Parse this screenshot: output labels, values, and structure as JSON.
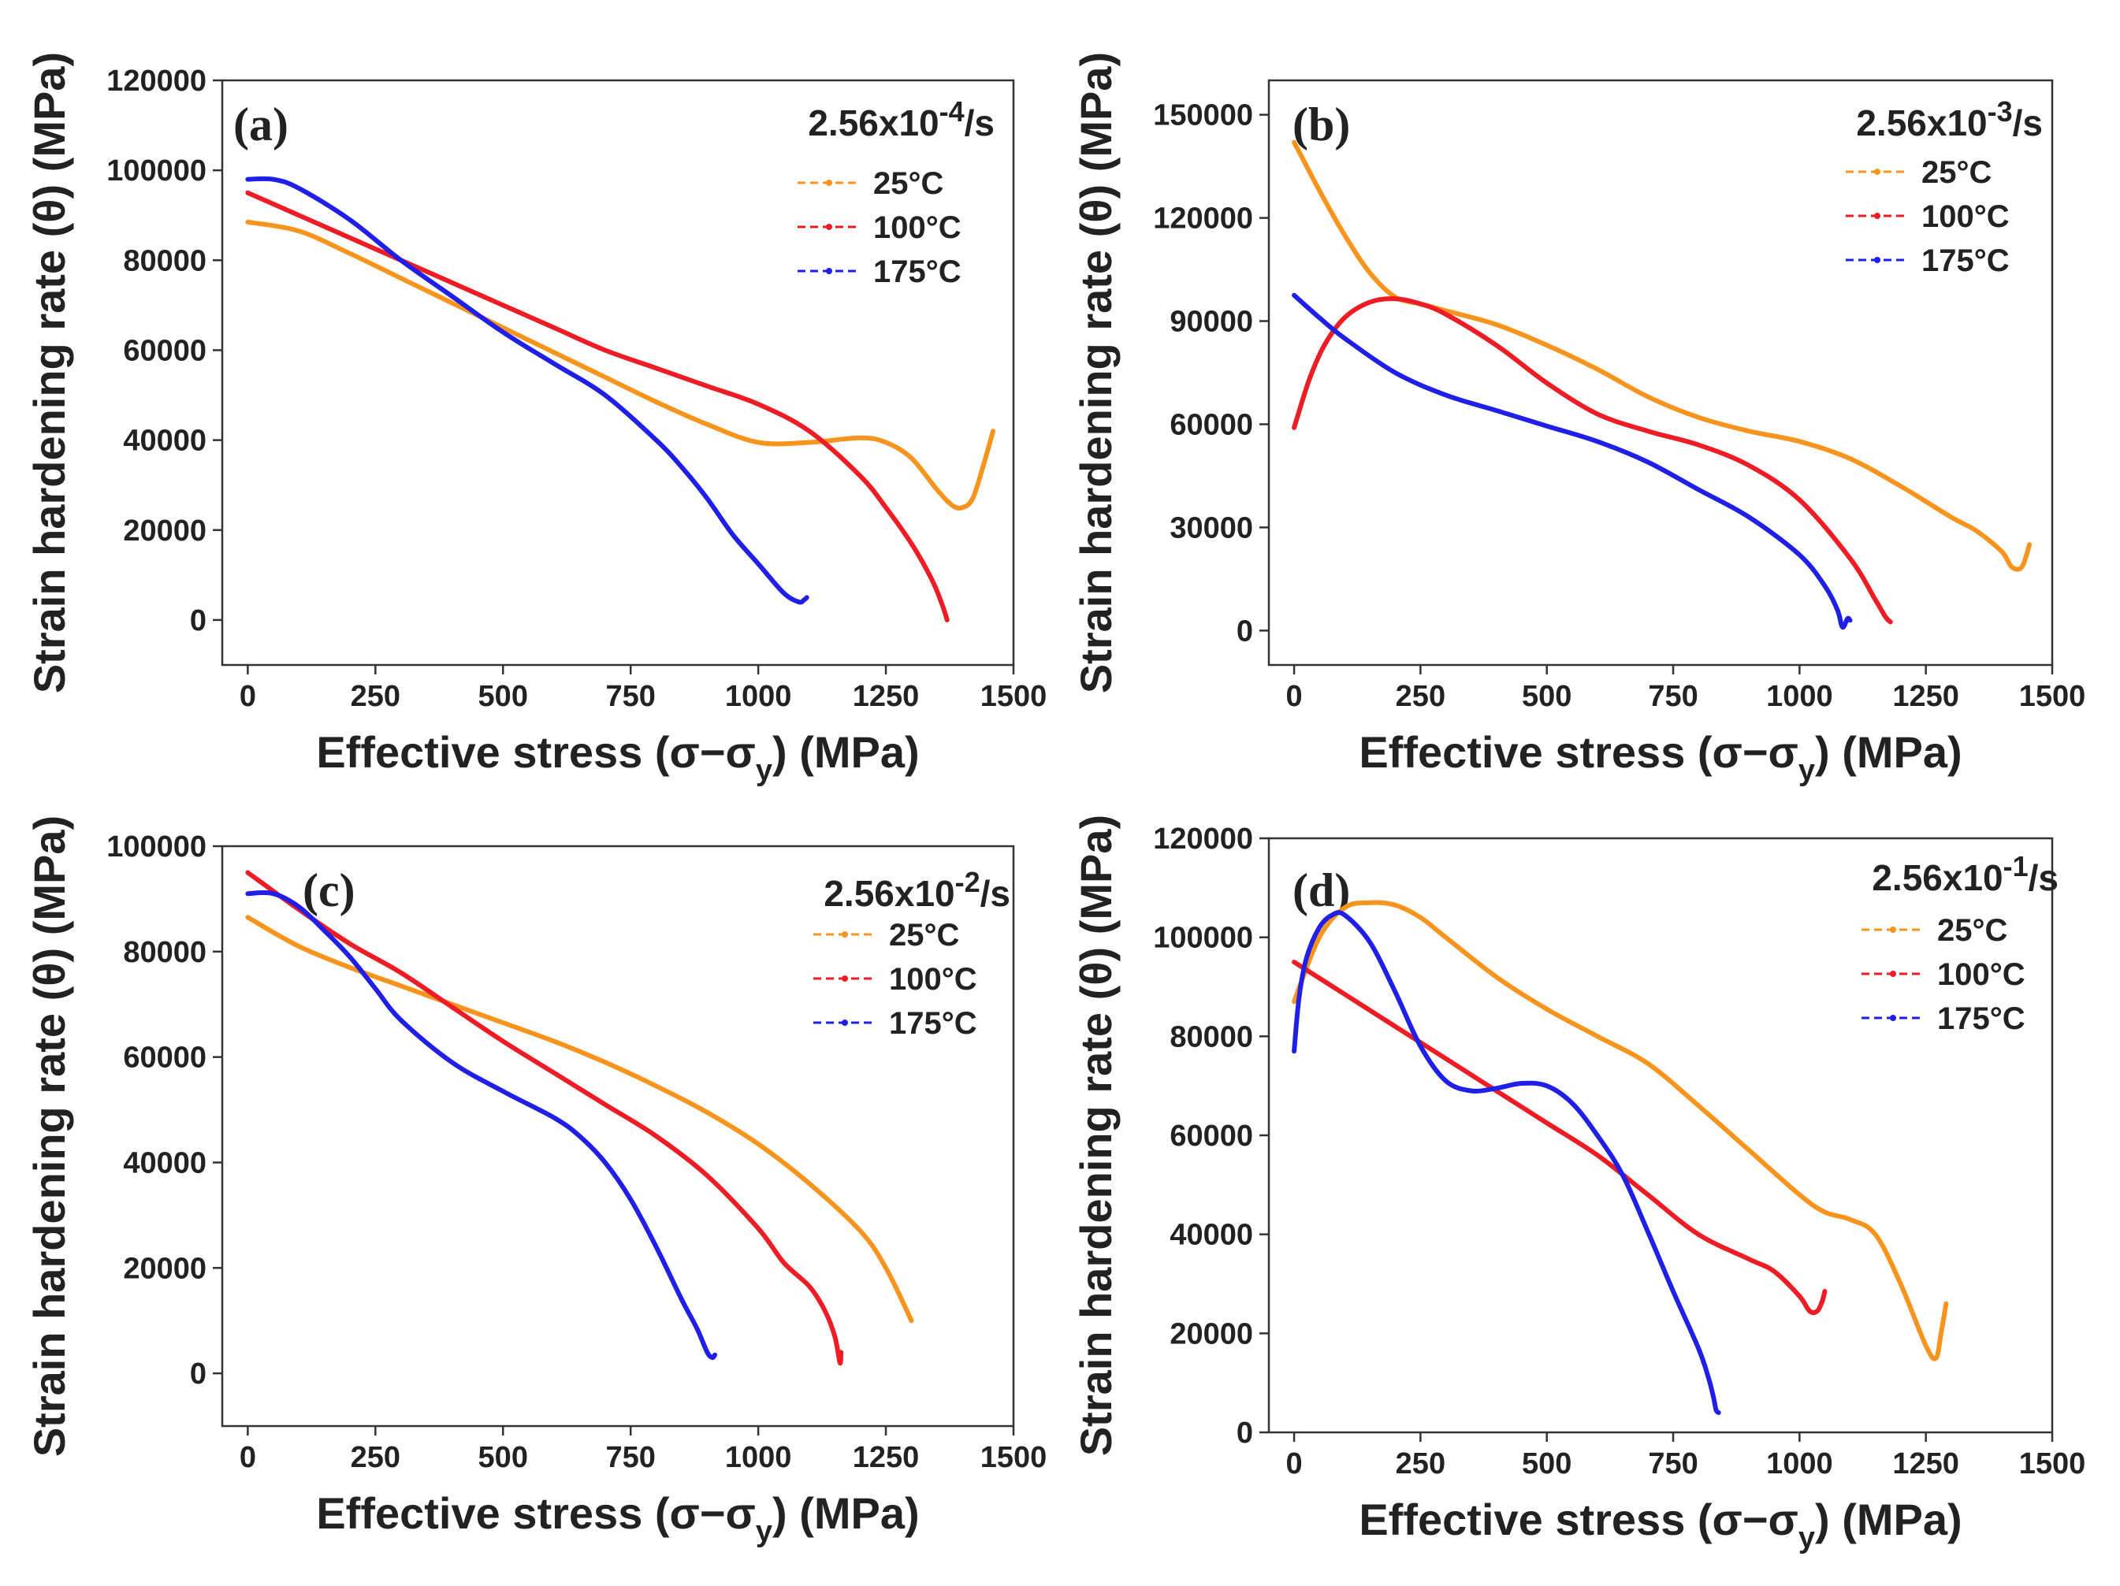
{
  "figure": {
    "x_axis_title": "Effective stress (σ−σ",
    "x_axis_sub": "y",
    "x_axis_tail": ") (MPa)",
    "y_axis_title": "Strain hardening rate (θ) (MPa)"
  },
  "colors": {
    "25°C": "#f7941d",
    "100°C": "#ee1c25",
    "175°C": "#1f1fe8"
  },
  "chart_data": [
    {
      "id": "a",
      "type": "line",
      "label": "(a)",
      "rate_base": "2.56x10",
      "rate_exp": "-4",
      "rate_unit": "/s",
      "xlim": [
        -50,
        1500
      ],
      "ylim": [
        -10000,
        120000
      ],
      "xticks": [
        0,
        250,
        500,
        750,
        1000,
        1250,
        1500
      ],
      "yticks": [
        0,
        20000,
        40000,
        60000,
        80000,
        100000,
        120000
      ],
      "xlabel": "Effective stress (σ−σy) (MPa)",
      "ylabel": "Strain hardening rate (θ) (MPa)",
      "series": [
        {
          "name": "25°C",
          "x": [
            0,
            100,
            200,
            300,
            400,
            500,
            600,
            700,
            800,
            900,
            1000,
            1100,
            1200,
            1250,
            1300,
            1350,
            1380,
            1400,
            1420,
            1440,
            1460
          ],
          "y": [
            88500,
            86500,
            81500,
            76000,
            70500,
            65000,
            59500,
            54000,
            48500,
            43500,
            39500,
            39500,
            40500,
            39500,
            36000,
            29000,
            25500,
            25000,
            27000,
            34000,
            42000
          ]
        },
        {
          "name": "100°C",
          "x": [
            0,
            100,
            200,
            300,
            400,
            500,
            600,
            700,
            800,
            900,
            1000,
            1100,
            1200,
            1250,
            1300,
            1340,
            1360,
            1370
          ],
          "y": [
            95000,
            90000,
            85000,
            80000,
            75000,
            70000,
            65000,
            60000,
            56000,
            52000,
            48000,
            42000,
            32000,
            25000,
            17000,
            9000,
            3500,
            0
          ]
        },
        {
          "name": "175°C",
          "x": [
            0,
            50,
            100,
            200,
            300,
            400,
            500,
            600,
            700,
            800,
            850,
            900,
            950,
            1000,
            1050,
            1080,
            1090,
            1095
          ],
          "y": [
            98000,
            98000,
            96000,
            89000,
            80000,
            72000,
            64000,
            57000,
            50000,
            40000,
            34000,
            27000,
            19000,
            12500,
            6000,
            4000,
            4500,
            5000
          ]
        }
      ]
    },
    {
      "id": "b",
      "type": "line",
      "label": "(b)",
      "rate_base": "2.56x10",
      "rate_exp": "-3",
      "rate_unit": "/s",
      "xlim": [
        -50,
        1500
      ],
      "ylim": [
        -10000,
        160000
      ],
      "xticks": [
        0,
        250,
        500,
        750,
        1000,
        1250,
        1500
      ],
      "yticks": [
        0,
        30000,
        60000,
        90000,
        120000,
        150000
      ],
      "xlabel": "Effective stress (σ−σy) (MPa)",
      "ylabel": "Strain hardening rate (θ) (MPa)",
      "series": [
        {
          "name": "25°C",
          "x": [
            0,
            50,
            100,
            150,
            200,
            250,
            300,
            400,
            500,
            600,
            700,
            800,
            900,
            1000,
            1100,
            1200,
            1300,
            1350,
            1400,
            1420,
            1440,
            1455
          ],
          "y": [
            142000,
            128000,
            115000,
            104000,
            97000,
            95000,
            93000,
            89000,
            83000,
            76000,
            68000,
            62000,
            58000,
            55000,
            50000,
            42000,
            33000,
            29000,
            23000,
            18500,
            18500,
            25000
          ]
        },
        {
          "name": "100°C",
          "x": [
            0,
            30,
            60,
            100,
            150,
            200,
            250,
            300,
            400,
            500,
            600,
            700,
            800,
            900,
            1000,
            1100,
            1150,
            1170,
            1180
          ],
          "y": [
            59000,
            73000,
            83000,
            91000,
            95500,
            96500,
            95000,
            92000,
            83000,
            72000,
            63000,
            58000,
            54000,
            48000,
            38000,
            21000,
            9000,
            4000,
            2500
          ]
        },
        {
          "name": "175°C",
          "x": [
            0,
            50,
            100,
            200,
            300,
            400,
            500,
            600,
            700,
            800,
            900,
            1000,
            1050,
            1075,
            1085,
            1095,
            1100
          ],
          "y": [
            97500,
            91000,
            85000,
            75000,
            68500,
            64000,
            59500,
            55000,
            49000,
            41000,
            33000,
            22000,
            13000,
            6000,
            1000,
            3500,
            3000
          ]
        }
      ]
    },
    {
      "id": "c",
      "type": "line",
      "label": "(c)",
      "rate_base": "2.56x10",
      "rate_exp": "-2",
      "rate_unit": "/s",
      "xlim": [
        -50,
        1500
      ],
      "ylim": [
        -10000,
        100000
      ],
      "xticks": [
        0,
        250,
        500,
        750,
        1000,
        1250,
        1500
      ],
      "yticks": [
        0,
        20000,
        40000,
        60000,
        80000,
        100000
      ],
      "xlabel": "Effective stress (σ−σy) (MPa)",
      "ylabel": "Strain hardening rate (θ) (MPa)",
      "series": [
        {
          "name": "25°C",
          "x": [
            0,
            100,
            200,
            300,
            400,
            500,
            600,
            700,
            800,
            900,
            1000,
            1100,
            1200,
            1250,
            1300
          ],
          "y": [
            86500,
            81000,
            77000,
            73500,
            70000,
            66500,
            63000,
            59000,
            54500,
            49500,
            43500,
            36000,
            27000,
            20000,
            10000
          ]
        },
        {
          "name": "100°C",
          "x": [
            0,
            100,
            200,
            300,
            400,
            500,
            600,
            700,
            800,
            900,
            1000,
            1050,
            1100,
            1130,
            1150,
            1160,
            1162
          ],
          "y": [
            95000,
            88000,
            81500,
            76000,
            69500,
            63000,
            57000,
            51000,
            45000,
            37500,
            27500,
            21000,
            16500,
            12000,
            7000,
            2000,
            4000
          ]
        },
        {
          "name": "175°C",
          "x": [
            0,
            50,
            100,
            150,
            200,
            250,
            300,
            400,
            500,
            600,
            650,
            700,
            750,
            800,
            850,
            880,
            900,
            910,
            915
          ],
          "y": [
            91000,
            91000,
            88500,
            84000,
            79000,
            73000,
            67000,
            59000,
            53500,
            48500,
            45000,
            40000,
            33000,
            24000,
            14000,
            8500,
            4000,
            3000,
            3500
          ]
        }
      ]
    },
    {
      "id": "d",
      "type": "line",
      "label": "(d)",
      "rate_base": "2.56x10",
      "rate_exp": "-1",
      "rate_unit": "/s",
      "xlim": [
        -50,
        1500
      ],
      "ylim": [
        0,
        120000
      ],
      "xticks": [
        0,
        250,
        500,
        750,
        1000,
        1250,
        1500
      ],
      "yticks": [
        0,
        20000,
        40000,
        60000,
        80000,
        100000,
        120000
      ],
      "xlabel": "Effective stress (σ−σy) (MPa)",
      "ylabel": "Strain hardening rate (θ) (MPa)",
      "series": [
        {
          "name": "25°C",
          "x": [
            0,
            50,
            100,
            150,
            200,
            250,
            300,
            400,
            500,
            600,
            700,
            800,
            900,
            1000,
            1050,
            1100,
            1150,
            1200,
            1250,
            1270,
            1280,
            1290
          ],
          "y": [
            87000,
            100000,
            106000,
            107000,
            106500,
            104000,
            100000,
            92000,
            85500,
            80000,
            74500,
            66000,
            57000,
            48000,
            44500,
            43000,
            40000,
            30000,
            17500,
            15000,
            20000,
            26000
          ]
        },
        {
          "name": "100°C",
          "x": [
            0,
            100,
            200,
            300,
            400,
            500,
            600,
            700,
            800,
            900,
            950,
            1000,
            1020,
            1035,
            1045,
            1050
          ],
          "y": [
            95000,
            88500,
            82000,
            75500,
            69000,
            62500,
            56000,
            48000,
            40000,
            35000,
            32500,
            27500,
            24500,
            24500,
            26500,
            28500
          ]
        },
        {
          "name": "175°C",
          "x": [
            0,
            10,
            25,
            50,
            75,
            100,
            150,
            200,
            250,
            300,
            350,
            400,
            450,
            500,
            550,
            600,
            650,
            700,
            750,
            800,
            820,
            830,
            835,
            840
          ],
          "y": [
            77000,
            88000,
            96000,
            102000,
            104500,
            104500,
            99000,
            89000,
            78000,
            71000,
            69000,
            69500,
            70500,
            70000,
            66500,
            60000,
            52000,
            40500,
            28500,
            17000,
            11000,
            7000,
            4500,
            4000
          ]
        }
      ]
    }
  ]
}
